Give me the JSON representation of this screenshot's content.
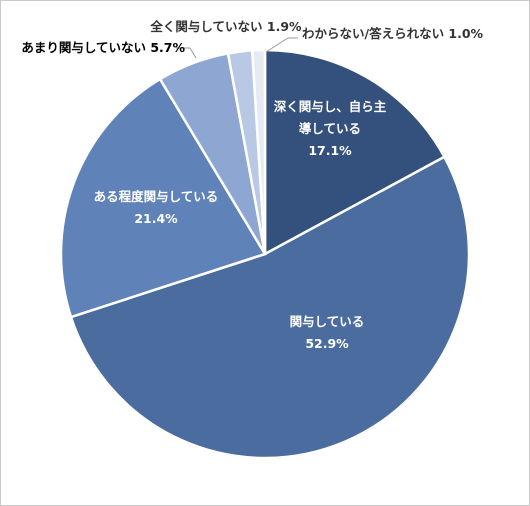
{
  "chart_data": {
    "type": "pie",
    "title": "",
    "unit": "%",
    "slices": [
      {
        "label": "深く関与し、自ら主導している",
        "label_lines": [
          "深く関与し、自ら主",
          "導している"
        ],
        "value": 17.1,
        "value_text": "17.1%",
        "color": "#34507d",
        "label_style": "inside"
      },
      {
        "label": "関与している",
        "label_lines": [
          "関与している"
        ],
        "value": 52.9,
        "value_text": "52.9%",
        "color": "#4a6c9f",
        "label_style": "inside"
      },
      {
        "label": "ある程度関与している",
        "label_lines": [
          "ある程度関与している"
        ],
        "value": 21.4,
        "value_text": "21.4%",
        "color": "#5f82b9",
        "label_style": "inside"
      },
      {
        "label": "あまり関与していない",
        "label_lines": [
          "あまり関与していない"
        ],
        "value": 5.7,
        "value_text": "5.7%",
        "color": "#8ea6d2",
        "label_style": "outside"
      },
      {
        "label": "全く関与していない",
        "label_lines": [
          "全く関与していない"
        ],
        "value": 1.9,
        "value_text": "1.9%",
        "color": "#b9c8e4",
        "label_style": "outside"
      },
      {
        "label": "わからない/答えられない",
        "label_lines": [
          "わからない/答えられない"
        ],
        "value": 1.0,
        "value_text": "1.0%",
        "color": "#e6ebf3",
        "label_style": "outside"
      }
    ]
  }
}
